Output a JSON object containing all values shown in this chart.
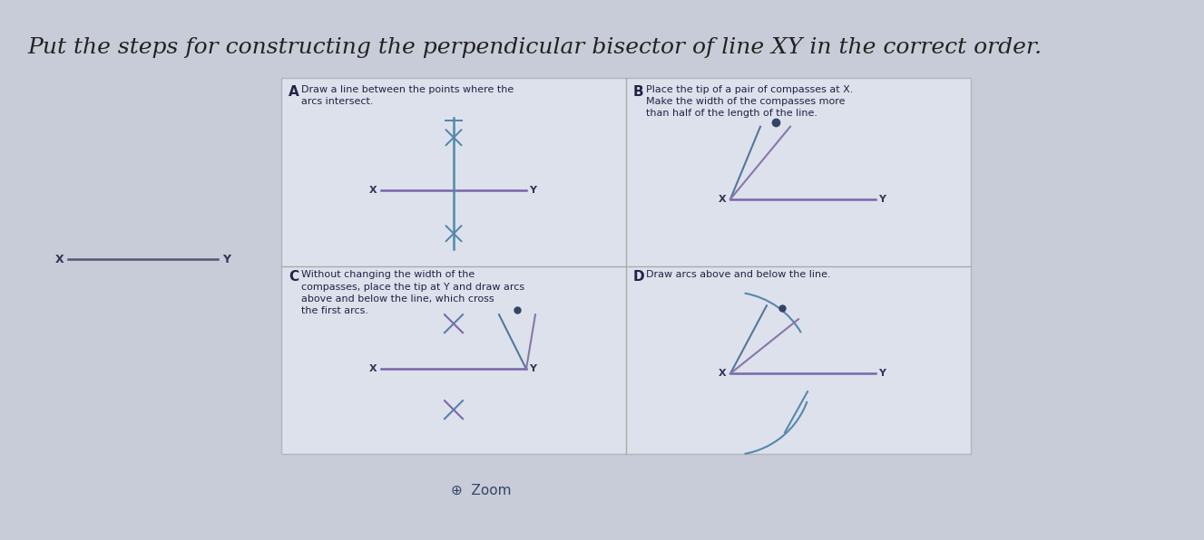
{
  "title": "Put the steps for constructing the perpendicular bisector of line XY in the correct order.",
  "title_fontsize": 18,
  "title_color": "#222222",
  "bg_color": "#d8dce8",
  "outer_bg": "#c8ccd8",
  "panel_bg": "#dde0ea",
  "panel_border": "#aaaaaa",
  "label_A": "A",
  "label_B": "B",
  "label_C": "C",
  "label_D": "D",
  "text_A": "Draw a line between the points where the\narcs intersect.",
  "text_B": "Place the tip of a pair of compasses at X.\nMake the width of the compasses more\nthan half of the length of the line.",
  "text_C": "Without changing the width of the\ncompasses, place the tip at Y and draw arcs\nabove and below the line, which cross\nthe first arcs.",
  "text_D": "Draw arcs above and below the line.",
  "zoom_text": "Zoom",
  "XY_line_left_label": "X",
  "XY_line_right_label": "Y"
}
